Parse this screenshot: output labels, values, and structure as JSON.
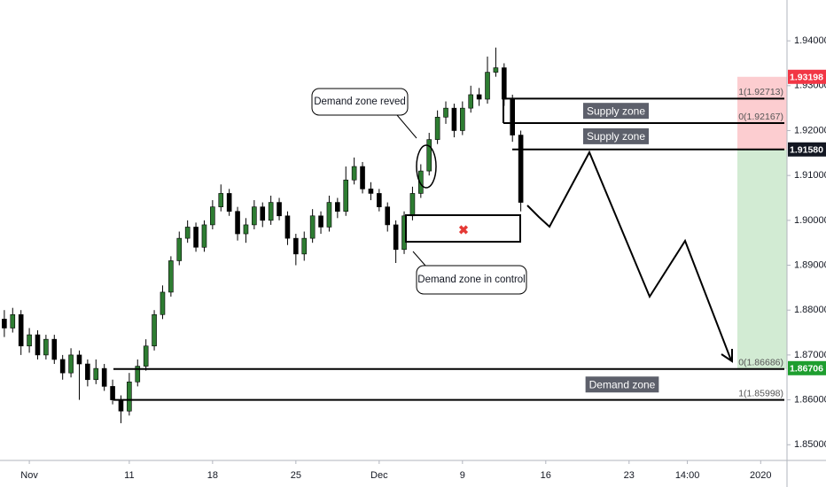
{
  "chart_data": {
    "type": "candlestick",
    "x": [
      -1.5,
      -1,
      -0.5,
      0,
      0.5,
      1,
      1.5,
      2,
      2.5,
      3,
      3.5,
      4,
      4.5,
      5,
      5.5,
      6,
      6.5,
      7,
      7.5,
      8,
      8.5,
      9,
      9.5,
      10,
      10.5,
      11,
      11.5,
      12,
      12.5,
      13,
      13.5,
      14,
      14.5,
      15,
      15.5,
      16,
      16.5,
      17,
      17.5,
      18,
      18.5,
      19,
      19.5,
      20,
      20.5,
      21,
      21.5,
      22,
      22.5,
      23,
      23.5,
      24,
      24.5,
      25,
      25.5,
      26,
      26.5,
      27,
      27.5,
      28,
      28.5,
      29,
      29.5
    ],
    "open": [
      1.878,
      1.876,
      1.879,
      1.872,
      1.8745,
      1.87,
      1.8735,
      1.869,
      1.866,
      1.87,
      1.868,
      1.8645,
      1.867,
      1.863,
      1.86,
      1.8575,
      1.864,
      1.8675,
      1.872,
      1.879,
      1.884,
      1.891,
      1.896,
      1.8985,
      1.894,
      1.899,
      1.903,
      1.906,
      1.902,
      1.897,
      1.899,
      1.903,
      1.9,
      1.904,
      1.901,
      1.896,
      1.8925,
      1.896,
      1.901,
      1.8985,
      1.904,
      1.902,
      1.909,
      1.912,
      1.907,
      1.906,
      1.903,
      1.899,
      1.8935,
      1.901,
      1.906,
      1.911,
      1.918,
      1.923,
      1.925,
      1.92,
      1.925,
      1.928,
      1.927,
      1.933,
      1.934,
      1.927,
      1.919
    ],
    "high": [
      1.88,
      1.8805,
      1.88,
      1.876,
      1.8755,
      1.8745,
      1.8745,
      1.87,
      1.8715,
      1.871,
      1.869,
      1.869,
      1.868,
      1.8645,
      1.861,
      1.866,
      1.869,
      1.8735,
      1.88,
      1.8855,
      1.892,
      1.8975,
      1.9,
      1.8995,
      1.9,
      1.9045,
      1.908,
      1.907,
      1.903,
      1.9005,
      1.9045,
      1.904,
      1.9055,
      1.905,
      1.902,
      1.897,
      1.8975,
      1.9025,
      1.902,
      1.9055,
      1.905,
      1.912,
      1.914,
      1.913,
      1.9085,
      1.907,
      1.904,
      1.9,
      1.902,
      1.9075,
      1.9125,
      1.9195,
      1.9245,
      1.9265,
      1.926,
      1.9265,
      1.93,
      1.9295,
      1.9365,
      1.9385,
      1.935,
      1.928,
      1.92
    ],
    "low": [
      1.874,
      1.875,
      1.87,
      1.8705,
      1.869,
      1.869,
      1.868,
      1.8645,
      1.865,
      1.86,
      1.863,
      1.8635,
      1.862,
      1.859,
      1.8548,
      1.8565,
      1.863,
      1.8665,
      1.871,
      1.878,
      1.883,
      1.89,
      1.895,
      1.893,
      1.893,
      1.898,
      1.902,
      1.901,
      1.8955,
      1.895,
      1.898,
      1.8985,
      1.899,
      1.9,
      1.8945,
      1.89,
      1.891,
      1.895,
      1.897,
      1.8975,
      1.9005,
      1.901,
      1.908,
      1.906,
      1.9045,
      1.902,
      1.8975,
      1.8905,
      1.8925,
      1.9,
      1.905,
      1.91,
      1.917,
      1.9215,
      1.9185,
      1.919,
      1.924,
      1.9255,
      1.926,
      1.932,
      1.9255,
      1.9175,
      1.902
    ],
    "close": [
      1.876,
      1.879,
      1.872,
      1.8745,
      1.87,
      1.8735,
      1.869,
      1.866,
      1.87,
      1.868,
      1.8645,
      1.867,
      1.863,
      1.86,
      1.8575,
      1.864,
      1.8675,
      1.872,
      1.879,
      1.884,
      1.891,
      1.896,
      1.8985,
      1.894,
      1.899,
      1.903,
      1.906,
      1.902,
      1.897,
      1.899,
      1.903,
      1.9,
      1.904,
      1.901,
      1.896,
      1.8925,
      1.896,
      1.901,
      1.8985,
      1.904,
      1.902,
      1.909,
      1.912,
      1.907,
      1.906,
      1.903,
      1.899,
      1.8935,
      1.901,
      1.906,
      1.911,
      1.918,
      1.923,
      1.925,
      1.92,
      1.925,
      1.928,
      1.927,
      1.933,
      1.934,
      1.927,
      1.919,
      1.904
    ],
    "up_color": "#2e7d32",
    "down_color": "#000000",
    "xlim": [
      -1.76,
      45.48
    ],
    "xticks": [
      {
        "value": 0,
        "label": "Nov"
      },
      {
        "value": 6,
        "label": "11"
      },
      {
        "value": 11,
        "label": "18"
      },
      {
        "value": 16,
        "label": "25"
      },
      {
        "value": 21,
        "label": "Dec"
      },
      {
        "value": 26,
        "label": "9"
      },
      {
        "value": 31,
        "label": "16"
      },
      {
        "value": 36,
        "label": "23"
      },
      {
        "value": 39.5,
        "label": "14:00"
      },
      {
        "value": 43.9,
        "label": "2020"
      }
    ],
    "ylim": [
      1.8465,
      1.9491
    ],
    "yticks": [
      {
        "value": 1.85,
        "label": "1.85000"
      },
      {
        "value": 1.86,
        "label": "1.86000"
      },
      {
        "value": 1.87,
        "label": "1.87000"
      },
      {
        "value": 1.88,
        "label": "1.88000"
      },
      {
        "value": 1.89,
        "label": "1.89000"
      },
      {
        "value": 1.9,
        "label": "1.90000"
      },
      {
        "value": 1.91,
        "label": "1.91000"
      },
      {
        "value": 1.92,
        "label": "1.92000"
      },
      {
        "value": 1.93,
        "label": "1.93000"
      },
      {
        "value": 1.94,
        "label": "1.94000"
      }
    ],
    "grid": false,
    "zones": [
      {
        "label": "Supply zone",
        "top": 1.92713,
        "bottom": 1.92167,
        "top_label": "1(1.92713)",
        "bottom_label": "0(1.92167)"
      },
      {
        "label": "Supply zone",
        "top": 1.92167,
        "bottom": 1.9158
      },
      {
        "label": "Demand zone",
        "top": 1.86686,
        "bottom": 1.85998,
        "top_label": "0(1.86686)",
        "bottom_label": "1(1.85998)"
      }
    ],
    "price_tags": [
      {
        "value": 1.93198,
        "label": "1.93198",
        "color": "#f23645"
      },
      {
        "value": 1.9158,
        "label": "1.91580",
        "color": "#131722"
      },
      {
        "value": 1.86706,
        "label": "1.86706",
        "color": "#1e9e2f"
      }
    ],
    "annotations": [
      "Demand zone reved",
      "Demand zone in control"
    ]
  }
}
